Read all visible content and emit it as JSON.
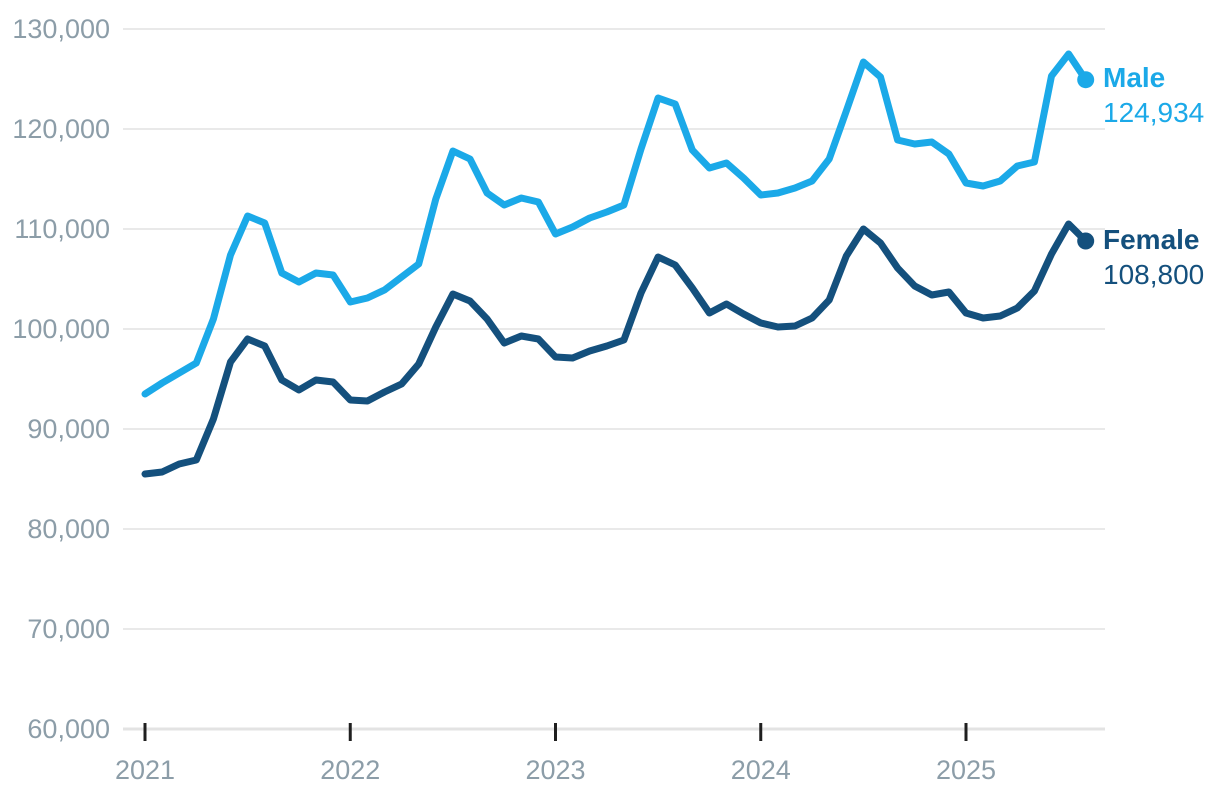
{
  "legend": {
    "male": {
      "label": "Male",
      "value": "124,934"
    },
    "female": {
      "label": "Female",
      "value": "108,800"
    }
  },
  "chart_data": {
    "type": "line",
    "title": "",
    "xlabel": "",
    "ylabel": "",
    "x_start_month": "2021-01",
    "x_end_month": "2025-08",
    "x_tick_labels": [
      "2021",
      "2022",
      "2023",
      "2024",
      "2025"
    ],
    "y_tick_labels": [
      "60,000",
      "70,000",
      "80,000",
      "90,000",
      "100,000",
      "110,000",
      "120,000",
      "130,000"
    ],
    "y_tick_values": [
      60000,
      70000,
      80000,
      90000,
      100000,
      110000,
      120000,
      130000
    ],
    "ylim": [
      60000,
      130000
    ],
    "grid": "horizontal-only",
    "legend_position": "right-of-line-ends",
    "series": [
      {
        "name": "Male",
        "color": "#1BA9E8",
        "end_label": "124,934",
        "end_value": 124934,
        "values": [
          93500,
          94600,
          95600,
          96600,
          101000,
          107400,
          111300,
          110600,
          105600,
          104700,
          105600,
          105400,
          102700,
          103100,
          103900,
          105200,
          106500,
          113000,
          117800,
          117000,
          113600,
          112400,
          113100,
          112700,
          109500,
          110200,
          111100,
          111700,
          112400,
          118000,
          123100,
          122500,
          117900,
          116100,
          116600,
          115100,
          113400,
          113600,
          114100,
          114800,
          117000,
          121800,
          126700,
          125200,
          118900,
          118500,
          118700,
          117500,
          114600,
          114300,
          114800,
          116300,
          116700,
          125300,
          127500,
          124934
        ]
      },
      {
        "name": "Female",
        "color": "#14507D",
        "end_label": "108,800",
        "end_value": 108800,
        "values": [
          85500,
          85700,
          86500,
          86900,
          91000,
          96700,
          99000,
          98300,
          94900,
          93900,
          94900,
          94700,
          92900,
          92800,
          93700,
          94500,
          96500,
          100200,
          103500,
          102800,
          101000,
          98600,
          99300,
          99000,
          97200,
          97100,
          97800,
          98300,
          98900,
          103600,
          107200,
          106400,
          104100,
          101600,
          102500,
          101500,
          100600,
          100200,
          100300,
          101100,
          102900,
          107300,
          110000,
          108600,
          106100,
          104300,
          103400,
          103700,
          101600,
          101100,
          101300,
          102100,
          103800,
          107500,
          110500,
          108800
        ]
      }
    ]
  },
  "colors": {
    "male_line": "#1BA9E8",
    "female_line": "#14507D",
    "axis_text": "#8C9DA8",
    "gridline": "#E9E9E9",
    "axis_line": "#E3E3E3",
    "tick_mark": "#1F1F1F",
    "background": "#FFFFFF"
  }
}
